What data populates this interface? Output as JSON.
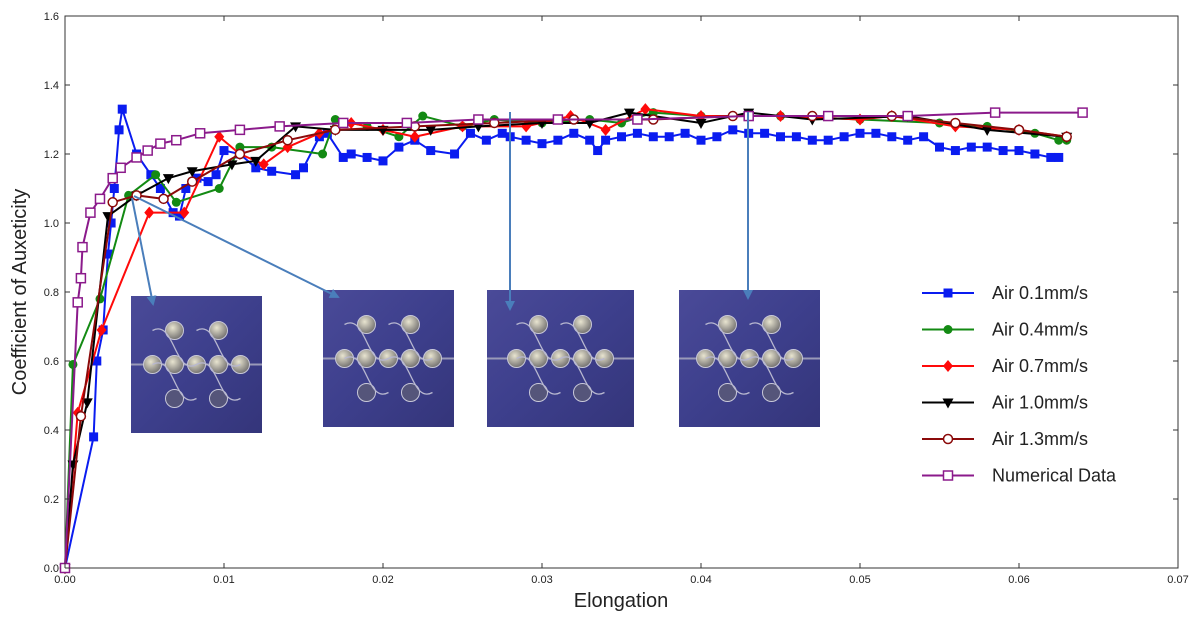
{
  "chart_data": {
    "type": "line",
    "x_label": "Elongation",
    "y_label": "Coefficient of Auxeticity",
    "xlim": [
      0,
      0.07
    ],
    "ylim": [
      0,
      1.6
    ],
    "xticks": [
      {
        "value": 0,
        "label": "0.00"
      },
      0.01,
      0.02,
      0.03,
      0.04,
      0.05,
      0.06,
      0.07
    ],
    "yticks": [
      {
        "value": 0,
        "label": "0.0"
      },
      0.2,
      0.4,
      0.6,
      0.8,
      {
        "value": 1,
        "label": "1.0"
      },
      1.2,
      1.4,
      1.6
    ],
    "grid": false,
    "legend": "right",
    "series": [
      {
        "name": "Air 0.1mm/s",
        "color": "#0a1cf0",
        "marker": "square",
        "x": [
          0,
          0.0018,
          0.002,
          0.0024,
          0.0027,
          0.0029,
          0.0031,
          0.0034,
          0.0036,
          0.0045,
          0.0054,
          0.006,
          0.0068,
          0.0072,
          0.0076,
          0.0083,
          0.009,
          0.0095,
          0.01,
          0.011,
          0.012,
          0.013,
          0.0145,
          0.015,
          0.016,
          0.0165,
          0.0175,
          0.018,
          0.019,
          0.02,
          0.021,
          0.022,
          0.023,
          0.0245,
          0.0255,
          0.0265,
          0.0275,
          0.028,
          0.029,
          0.03,
          0.031,
          0.032,
          0.033,
          0.0335,
          0.034,
          0.035,
          0.036,
          0.037,
          0.038,
          0.039,
          0.04,
          0.041,
          0.042,
          0.043,
          0.044,
          0.045,
          0.046,
          0.047,
          0.048,
          0.049,
          0.05,
          0.051,
          0.052,
          0.053,
          0.054,
          0.055,
          0.056,
          0.057,
          0.058,
          0.059,
          0.06,
          0.061,
          0.062,
          0.0625
        ],
        "values": [
          0,
          0.38,
          0.6,
          0.69,
          0.91,
          1.0,
          1.1,
          1.27,
          1.33,
          1.2,
          1.14,
          1.1,
          1.03,
          1.02,
          1.1,
          1.13,
          1.12,
          1.14,
          1.21,
          1.2,
          1.16,
          1.15,
          1.14,
          1.16,
          1.25,
          1.26,
          1.19,
          1.2,
          1.19,
          1.18,
          1.22,
          1.24,
          1.21,
          1.2,
          1.26,
          1.24,
          1.26,
          1.25,
          1.24,
          1.23,
          1.24,
          1.26,
          1.24,
          1.21,
          1.24,
          1.25,
          1.26,
          1.25,
          1.25,
          1.26,
          1.24,
          1.25,
          1.27,
          1.26,
          1.26,
          1.25,
          1.25,
          1.24,
          1.24,
          1.25,
          1.26,
          1.26,
          1.25,
          1.24,
          1.25,
          1.22,
          1.21,
          1.22,
          1.22,
          1.21,
          1.21,
          1.2,
          1.19,
          1.19
        ]
      },
      {
        "name": "Air 0.4mm/s",
        "color": "#138a13",
        "marker": "circle",
        "x": [
          0,
          0.0005,
          0.0022,
          0.004,
          0.0057,
          0.007,
          0.0097,
          0.011,
          0.013,
          0.0162,
          0.017,
          0.019,
          0.021,
          0.0225,
          0.025,
          0.027,
          0.03,
          0.033,
          0.035,
          0.037,
          0.04,
          0.045,
          0.05,
          0.055,
          0.058,
          0.061,
          0.0625,
          0.063
        ],
        "values": [
          0,
          0.59,
          0.78,
          1.08,
          1.14,
          1.06,
          1.1,
          1.22,
          1.22,
          1.2,
          1.3,
          1.28,
          1.25,
          1.31,
          1.28,
          1.3,
          1.29,
          1.3,
          1.29,
          1.32,
          1.31,
          1.31,
          1.3,
          1.29,
          1.28,
          1.26,
          1.24,
          1.24
        ]
      },
      {
        "name": "Air 0.7mm/s",
        "color": "#ff0a0a",
        "marker": "diamond",
        "x": [
          0,
          0.0008,
          0.0023,
          0.0053,
          0.0075,
          0.0097,
          0.011,
          0.0125,
          0.014,
          0.016,
          0.018,
          0.02,
          0.022,
          0.025,
          0.029,
          0.0318,
          0.034,
          0.0365,
          0.04,
          0.045,
          0.05,
          0.052,
          0.056,
          0.06,
          0.063
        ],
        "values": [
          0,
          0.45,
          0.69,
          1.03,
          1.03,
          1.25,
          1.2,
          1.17,
          1.22,
          1.26,
          1.29,
          1.27,
          1.25,
          1.28,
          1.28,
          1.31,
          1.27,
          1.33,
          1.31,
          1.31,
          1.3,
          1.31,
          1.28,
          1.27,
          1.25
        ]
      },
      {
        "name": "Air 1.0mm/s",
        "color": "#000000",
        "marker": "triangle-down",
        "x": [
          0,
          0.0005,
          0.0014,
          0.0027,
          0.0045,
          0.0065,
          0.008,
          0.0105,
          0.012,
          0.0145,
          0.017,
          0.02,
          0.023,
          0.026,
          0.03,
          0.033,
          0.0355,
          0.04,
          0.043,
          0.047,
          0.053,
          0.058,
          0.063
        ],
        "values": [
          0,
          0.3,
          0.48,
          1.02,
          1.08,
          1.13,
          1.15,
          1.17,
          1.18,
          1.28,
          1.27,
          1.27,
          1.27,
          1.28,
          1.29,
          1.29,
          1.32,
          1.29,
          1.32,
          1.3,
          1.31,
          1.27,
          1.25
        ]
      },
      {
        "name": "Air 1.3mm/s",
        "color": "#8b0a0a",
        "marker": "circle-open",
        "x": [
          0,
          0.001,
          0.003,
          0.0045,
          0.0062,
          0.008,
          0.011,
          0.014,
          0.017,
          0.022,
          0.027,
          0.032,
          0.037,
          0.042,
          0.047,
          0.052,
          0.056,
          0.06,
          0.063
        ],
        "values": [
          0,
          0.44,
          1.06,
          1.08,
          1.07,
          1.12,
          1.2,
          1.24,
          1.27,
          1.28,
          1.29,
          1.3,
          1.3,
          1.31,
          1.31,
          1.31,
          1.29,
          1.27,
          1.25
        ]
      },
      {
        "name": "Numerical Data",
        "color": "#8b1a8b",
        "marker": "square-open",
        "x": [
          0,
          0.0008,
          0.001,
          0.0011,
          0.0016,
          0.0022,
          0.003,
          0.0035,
          0.0045,
          0.0052,
          0.006,
          0.007,
          0.0085,
          0.011,
          0.0135,
          0.0175,
          0.0215,
          0.026,
          0.031,
          0.036,
          0.043,
          0.048,
          0.053,
          0.0585,
          0.064
        ],
        "values": [
          0,
          0.77,
          0.84,
          0.93,
          1.03,
          1.07,
          1.13,
          1.16,
          1.19,
          1.21,
          1.23,
          1.24,
          1.26,
          1.27,
          1.28,
          1.29,
          1.29,
          1.3,
          1.3,
          1.3,
          1.31,
          1.31,
          1.31,
          1.32,
          1.32
        ]
      }
    ]
  }
}
